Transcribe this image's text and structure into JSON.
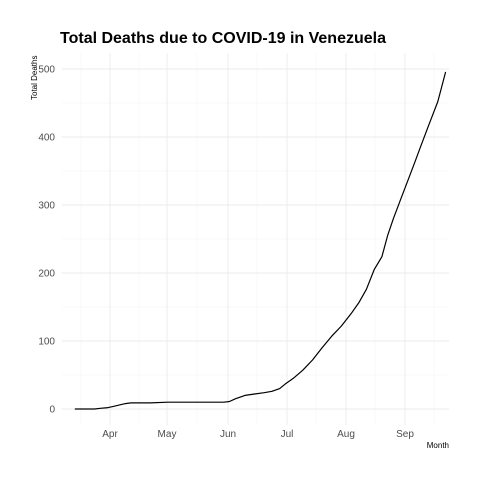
{
  "chart_data": {
    "type": "line",
    "title": "Total Deaths due to COVID-19 in Venezuela",
    "xlabel": "Month",
    "ylabel": "Total Deaths",
    "x_ticks": [
      "Apr",
      "May",
      "Jun",
      "Jul",
      "Aug",
      "Sep"
    ],
    "y_ticks": [
      0,
      100,
      200,
      300,
      400,
      500
    ],
    "ylim": [
      0,
      500
    ],
    "grid": true,
    "legend": "none",
    "series": [
      {
        "x": [
          "2020-03-14",
          "2020-03-24",
          "2020-03-27",
          "2020-03-31",
          "2020-04-03",
          "2020-04-06",
          "2020-04-09",
          "2020-04-12",
          "2020-04-15",
          "2020-04-22",
          "2020-05-01",
          "2020-05-15",
          "2020-05-25",
          "2020-05-30",
          "2020-06-02",
          "2020-06-05",
          "2020-06-10",
          "2020-06-15",
          "2020-06-20",
          "2020-06-24",
          "2020-06-28",
          "2020-07-01",
          "2020-07-05",
          "2020-07-10",
          "2020-07-15",
          "2020-07-20",
          "2020-07-25",
          "2020-07-30",
          "2020-08-04",
          "2020-08-08",
          "2020-08-12",
          "2020-08-16",
          "2020-08-20",
          "2020-08-23",
          "2020-08-26",
          "2020-08-30",
          "2020-09-03",
          "2020-09-06",
          "2020-09-09",
          "2020-09-13",
          "2020-09-18",
          "2020-09-22"
        ],
        "values": [
          0,
          0,
          1,
          2,
          4,
          6,
          8,
          9,
          9,
          9,
          10,
          10,
          10,
          10,
          11,
          15,
          20,
          22,
          24,
          26,
          30,
          37,
          45,
          57,
          72,
          90,
          107,
          122,
          140,
          156,
          176,
          205,
          224,
          255,
          280,
          310,
          340,
          362,
          385,
          415,
          452,
          495
        ]
      }
    ]
  }
}
